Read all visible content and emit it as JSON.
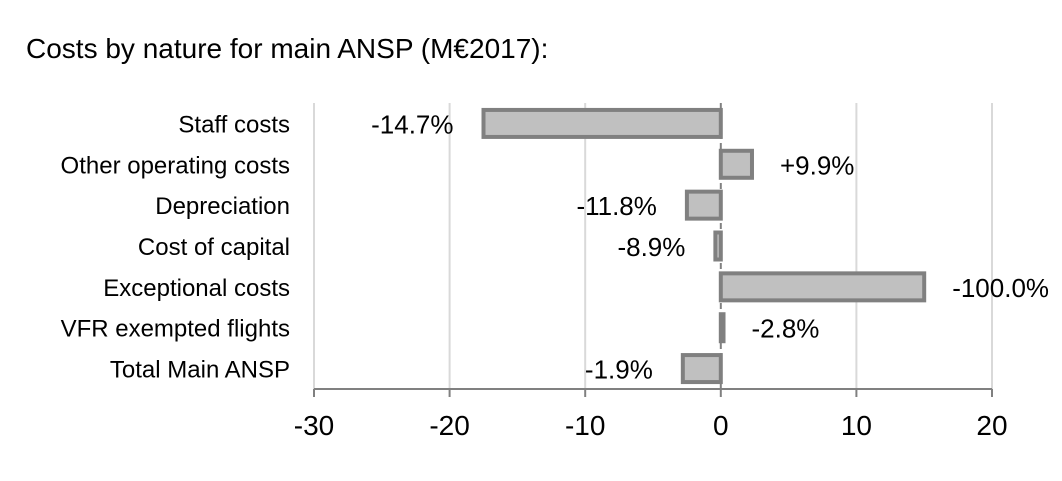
{
  "colors": {
    "bar_fill": "#c0c0c0",
    "bar_stroke": "#808080",
    "gridline": "#d9d9d9",
    "axis": "#808080",
    "text": "#000000"
  },
  "chart_data": {
    "type": "bar",
    "orientation": "horizontal",
    "title": "Costs by nature for main ANSP (M€2017):",
    "xlabel": "",
    "ylabel": "",
    "categories": [
      "Staff costs",
      "Other operating costs",
      "Depreciation",
      "Cost of capital",
      "Exceptional costs",
      "VFR exempted flights",
      "Total Main ANSP"
    ],
    "values": [
      -17.5,
      2.3,
      -2.5,
      -0.4,
      15.0,
      0.2,
      -2.8
    ],
    "data_labels": [
      "-14.7%",
      "+9.9%",
      "-11.8%",
      "-8.9%",
      "-100.0%",
      "-2.8%",
      "-1.9%"
    ],
    "xlim": [
      -30,
      20
    ],
    "xticks": [
      -30,
      -20,
      -10,
      0,
      10,
      20
    ],
    "xtick_labels": [
      "-30",
      "-20",
      "-10",
      "0",
      "10",
      "20"
    ],
    "grid": "vertical",
    "legend": "none"
  }
}
